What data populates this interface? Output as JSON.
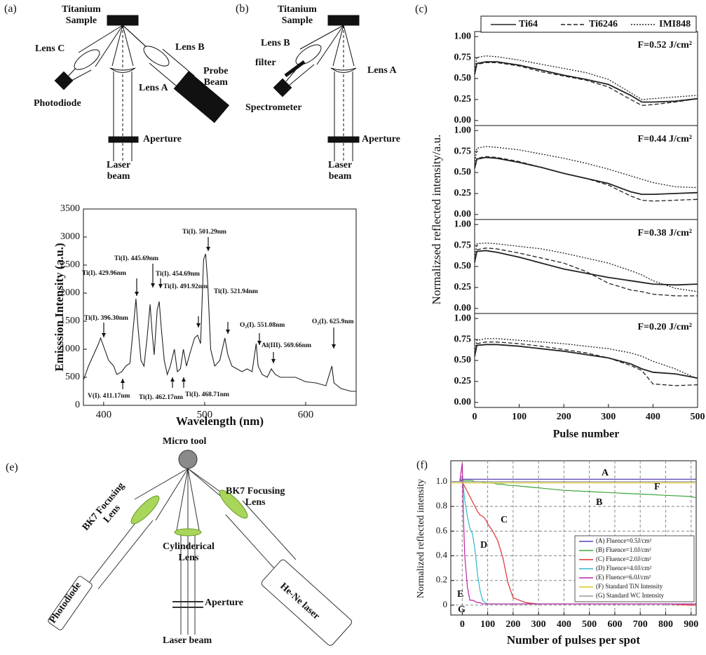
{
  "chart_data": [
    {
      "type": "line",
      "panel_label": "(c)",
      "ylabel": "Normalizsed reflected intensity/a.u.",
      "xlabel": "Pulse number",
      "x": [
        0,
        5,
        25,
        50,
        100,
        150,
        200,
        250,
        300,
        350,
        375,
        400,
        450,
        500
      ],
      "xlim": [
        0,
        500
      ],
      "xticks": [
        0,
        100,
        200,
        300,
        400,
        500
      ],
      "ylim": [
        -0.06,
        1.06
      ],
      "yticks": [
        {
          "value": 0,
          "label": "0.00"
        },
        {
          "value": 0.25,
          "label": "0.25"
        },
        {
          "value": 0.5,
          "label": "0.50"
        },
        {
          "value": 0.75,
          "label": "0.75"
        },
        {
          "value": 1,
          "label": "1.00"
        }
      ],
      "color": "#222222",
      "legend": [
        {
          "name": "Ti64",
          "dash": "solid"
        },
        {
          "name": "Ti6246",
          "dash": "dashed"
        },
        {
          "name": "IMI848",
          "dash": "dotted"
        }
      ],
      "panels": [
        {
          "annotation": "F=0.52 J/cm²",
          "series": [
            {
              "values": [
                0.55,
                0.68,
                0.7,
                0.7,
                0.66,
                0.6,
                0.54,
                0.49,
                0.43,
                0.3,
                0.22,
                0.22,
                0.23,
                0.26
              ]
            },
            {
              "values": [
                0.55,
                0.67,
                0.69,
                0.69,
                0.65,
                0.58,
                0.53,
                0.48,
                0.4,
                0.25,
                0.18,
                0.19,
                0.22,
                0.26
              ]
            },
            {
              "values": [
                0.6,
                0.75,
                0.77,
                0.76,
                0.72,
                0.67,
                0.62,
                0.57,
                0.49,
                0.33,
                0.25,
                0.26,
                0.28,
                0.3
              ]
            }
          ]
        },
        {
          "annotation": "F=0.44 J/cm²",
          "series": [
            {
              "values": [
                0.55,
                0.66,
                0.68,
                0.67,
                0.62,
                0.56,
                0.49,
                0.43,
                0.37,
                0.27,
                0.24,
                0.24,
                0.25,
                0.26
              ]
            },
            {
              "values": [
                0.55,
                0.67,
                0.69,
                0.68,
                0.63,
                0.56,
                0.49,
                0.43,
                0.35,
                0.22,
                0.17,
                0.16,
                0.17,
                0.18
              ]
            },
            {
              "values": [
                0.6,
                0.79,
                0.81,
                0.8,
                0.77,
                0.72,
                0.67,
                0.61,
                0.54,
                0.46,
                0.42,
                0.38,
                0.33,
                0.32
              ]
            }
          ]
        },
        {
          "annotation": "F=0.38 J/cm²",
          "series": [
            {
              "values": [
                0.55,
                0.68,
                0.69,
                0.67,
                0.61,
                0.54,
                0.47,
                0.42,
                0.37,
                0.33,
                0.31,
                0.29,
                0.28,
                0.29
              ]
            },
            {
              "values": [
                0.55,
                0.7,
                0.72,
                0.71,
                0.66,
                0.6,
                0.54,
                0.44,
                0.3,
                0.22,
                0.2,
                0.17,
                0.15,
                0.15
              ]
            },
            {
              "values": [
                0.6,
                0.77,
                0.78,
                0.77,
                0.74,
                0.71,
                0.66,
                0.6,
                0.54,
                0.45,
                0.4,
                0.33,
                0.24,
                0.2
              ]
            }
          ]
        },
        {
          "annotation": "F=0.20 J/cm²",
          "series": [
            {
              "values": [
                0.55,
                0.68,
                0.69,
                0.69,
                0.67,
                0.64,
                0.61,
                0.57,
                0.53,
                0.46,
                0.4,
                0.36,
                0.34,
                0.29
              ]
            },
            {
              "values": [
                0.55,
                0.7,
                0.72,
                0.72,
                0.7,
                0.67,
                0.63,
                0.59,
                0.53,
                0.44,
                0.38,
                0.22,
                0.2,
                0.21
              ]
            },
            {
              "values": [
                0.6,
                0.74,
                0.76,
                0.76,
                0.74,
                0.72,
                0.7,
                0.67,
                0.64,
                0.59,
                0.55,
                0.49,
                0.4,
                0.28
              ]
            }
          ]
        }
      ]
    },
    {
      "type": "line",
      "ylabel": "Emisssion Intensity (a.u.)",
      "xlabel": "Wavelength (nm)",
      "color": "#222222",
      "x": [
        380,
        385,
        390,
        395,
        397,
        400,
        405,
        410,
        413,
        418,
        422,
        426,
        430,
        432,
        434,
        437,
        440,
        443,
        446,
        448,
        450,
        453,
        455,
        457,
        460,
        463,
        466,
        470,
        473,
        476,
        479,
        482,
        485,
        490,
        493,
        496,
        499,
        501,
        503,
        506,
        510,
        515,
        520,
        523,
        527,
        532,
        537,
        542,
        547,
        551,
        553,
        557,
        562,
        566,
        570,
        575,
        580,
        590,
        600,
        610,
        620,
        626,
        628,
        635,
        645,
        650
      ],
      "values": [
        450,
        700,
        900,
        1100,
        1200,
        1050,
        800,
        700,
        550,
        600,
        700,
        750,
        1500,
        1900,
        1400,
        800,
        700,
        1200,
        1800,
        1300,
        900,
        1700,
        1850,
        1400,
        800,
        550,
        700,
        1000,
        600,
        650,
        1000,
        700,
        900,
        1200,
        1250,
        1100,
        2600,
        2700,
        2200,
        1000,
        700,
        800,
        1200,
        900,
        700,
        650,
        600,
        650,
        600,
        1100,
        700,
        550,
        500,
        650,
        550,
        500,
        500,
        500,
        420,
        400,
        350,
        700,
        400,
        300,
        250,
        250
      ],
      "xlim": [
        380,
        650
      ],
      "xticks": [
        400,
        500,
        600
      ],
      "ylim": [
        0,
        3500
      ],
      "yticks": [
        0,
        500,
        1000,
        1500,
        2000,
        2500,
        3000,
        3500
      ],
      "annotations": [
        "Ti(I). 396.30nm",
        "V(I). 411.17nm",
        "Ti(I). 429.96nm",
        "Ti(I). 445.69nm",
        "Ti(I). 454.69nm",
        "Ti(I). 491.92nm",
        "Ti(I). 462.17nm",
        "Ti(I). 468.71nm",
        "Ti(I). 501.29nm",
        "Ti(I). 521.94nm",
        "O₂(I). 551.08nm",
        "Al(III). 569.66nm",
        "O₂(I). 625.9nm"
      ]
    },
    {
      "type": "line",
      "panel_label": "(f)",
      "ylabel": "Normalized reflected intensity",
      "xlabel": "Number of pulses per spot",
      "grid": true,
      "x": [
        -45,
        -10,
        0,
        5,
        10,
        20,
        30,
        40,
        50,
        60,
        70,
        80,
        90,
        100,
        120,
        140,
        160,
        180,
        200,
        250,
        300,
        400,
        500,
        600,
        700,
        800,
        900,
        920
      ],
      "xlim": [
        -45,
        920
      ],
      "xticks": [
        0,
        100,
        200,
        300,
        400,
        500,
        600,
        700,
        800,
        900
      ],
      "ylim": [
        -0.08,
        1.17
      ],
      "yticks": [
        0,
        0.2,
        0.4,
        0.6,
        0.8,
        {
          "value": 1,
          "label": "1.0"
        }
      ],
      "series": [
        {
          "name": "(A) Fluence=0.5J/cm²",
          "color": "#5a3fb0",
          "values": [
            1.0,
            1.0,
            1.02,
            1.02,
            1.02,
            1.02,
            1.02,
            1.02,
            1.02,
            1.02,
            1.02,
            1.02,
            1.02,
            1.02,
            1.02,
            1.02,
            1.02,
            1.02,
            1.02,
            1.02,
            1.02,
            1.02,
            1.02,
            1.02,
            1.02,
            1.02,
            1.02,
            1.02
          ]
        },
        {
          "name": "(B) Fluence=1.0J/cm²",
          "color": "#3aa53a",
          "values": [
            1.0,
            1.0,
            1.01,
            1.01,
            1.01,
            1.01,
            1.01,
            1.01,
            1.0,
            1.0,
            1.0,
            1.0,
            0.99,
            0.99,
            0.99,
            0.98,
            0.98,
            0.97,
            0.97,
            0.96,
            0.95,
            0.93,
            0.92,
            0.91,
            0.9,
            0.89,
            0.88,
            0.87
          ]
        },
        {
          "name": "(C) Fluence=2.0J/cm²",
          "color": "#e03030",
          "values": [
            1.0,
            1.0,
            1.0,
            0.98,
            0.96,
            0.92,
            0.88,
            0.84,
            0.8,
            0.76,
            0.73,
            0.72,
            0.7,
            0.66,
            0.6,
            0.52,
            0.38,
            0.18,
            0.06,
            0.02,
            0.01,
            0.01,
            0.01,
            0.01,
            0.01,
            0.01,
            0.0,
            0.0
          ]
        },
        {
          "name": "(D) Fluence=4.0J/cm²",
          "color": "#30b8c8",
          "values": [
            1.0,
            1.0,
            1.05,
            0.95,
            0.85,
            0.72,
            0.62,
            0.58,
            0.45,
            0.25,
            0.12,
            0.04,
            0.02,
            0.01,
            0.01,
            0.01,
            0.01,
            0.01,
            0.01,
            0.01,
            0.01,
            0.01,
            0.01,
            0.01,
            0.01,
            0.01,
            0.01,
            0.01
          ]
        },
        {
          "name": "(E) Fluence=6.0J/cm²",
          "color": "#c020a0",
          "values": [
            1.0,
            1.0,
            1.15,
            0.7,
            0.4,
            0.15,
            0.04,
            0.04,
            0.03,
            0.02,
            0.02,
            0.01,
            0.01,
            0.01,
            0.01,
            0.01,
            0.01,
            0.01,
            0.01,
            0.01,
            0.01,
            0.01,
            0.01,
            0.01,
            0.01,
            0.01,
            0.01,
            0.01
          ]
        },
        {
          "name": "(F) Standard TiN Intensity",
          "color": "#d8c820",
          "values": [
            0.99,
            0.99,
            0.99,
            0.99,
            0.99,
            0.99,
            0.99,
            0.99,
            0.99,
            0.99,
            0.99,
            0.99,
            0.99,
            0.99,
            0.99,
            0.99,
            0.99,
            0.99,
            0.99,
            0.99,
            0.99,
            0.99,
            0.99,
            0.99,
            0.99,
            0.99,
            0.99,
            0.99
          ]
        },
        {
          "name": "(G) Standard WC Intensity",
          "color": "#999999",
          "values": [
            1.0,
            1.0,
            1.0,
            1.0,
            1.0,
            1.0,
            1.0,
            1.0,
            1.0,
            1.0,
            1.0,
            1.0,
            1.0,
            1.0,
            1.0,
            1.0,
            1.0,
            1.0,
            1.0,
            1.0,
            1.0,
            1.0,
            1.0,
            1.0,
            1.0,
            1.0,
            1.0,
            1.0
          ]
        }
      ],
      "annotations": [
        "A",
        "F",
        "B",
        "C",
        "D",
        "E",
        "G"
      ]
    }
  ],
  "diagrams": [
    {
      "panel_label": "(a)",
      "labels": [
        "Titanium\nSample",
        "Lens C",
        "Lens B",
        "Probe\nBeam",
        "Lens A",
        "Photodiode",
        "Aperture",
        "Laser\nbeam"
      ]
    },
    {
      "panel_label": "(b)",
      "labels": [
        "Titanium\nSample",
        "Lens B",
        "filter",
        "Lens A",
        "Spectrometer",
        "Aperture",
        "Laser\nbeam"
      ]
    },
    {
      "panel_label": "(e)",
      "labels": [
        "Micro tool",
        "BK7 Focusing\nLens",
        "BK7 Focusing\nLens",
        "Cylinderical\nLens",
        "Aperture",
        "Photodiode",
        "He-Ne laser",
        "Laser beam"
      ]
    }
  ]
}
